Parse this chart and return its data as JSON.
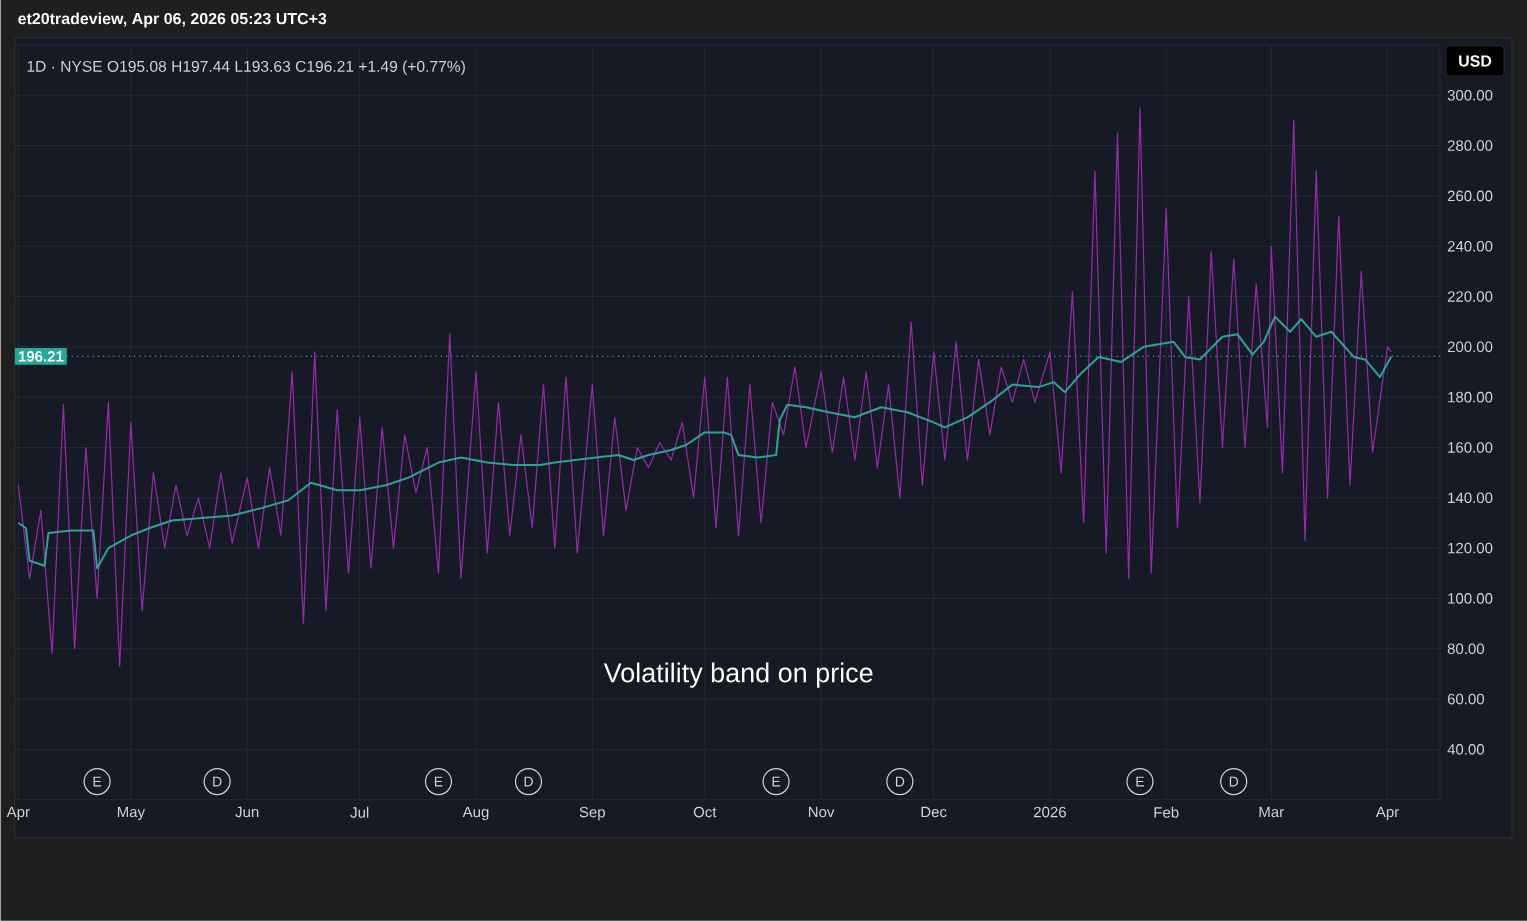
{
  "chart_data": {
    "type": "line",
    "title": "et20tradeview, Apr 06, 2026 05:23 UTC+3",
    "subtitle": "1D · NYSE O195.08 H197.44 L193.63 C196.21 +1.49 (+0.77%)",
    "xlim": [
      "2025-03-31",
      "2026-04-15"
    ],
    "xticks": [
      {
        "value": "2025-04-01",
        "label": "Apr"
      },
      {
        "value": "2025-05-01",
        "label": "May"
      },
      {
        "value": "2025-06-01",
        "label": "Jun"
      },
      {
        "value": "2025-07-01",
        "label": "Jul"
      },
      {
        "value": "2025-08-01",
        "label": "Aug"
      },
      {
        "value": "2025-09-01",
        "label": "Sep"
      },
      {
        "value": "2025-10-01",
        "label": "Oct"
      },
      {
        "value": "2025-11-01",
        "label": "Nov"
      },
      {
        "value": "2025-12-01",
        "label": "Dec"
      },
      {
        "value": "2026-01-01",
        "label": "2026"
      },
      {
        "value": "2026-02-01",
        "label": "Feb"
      },
      {
        "value": "2026-03-01",
        "label": "Mar"
      },
      {
        "value": "2026-04-01",
        "label": "Apr"
      }
    ],
    "ylim": [
      20,
      320
    ],
    "yticks": [
      {
        "value": 40,
        "label": "40.00"
      },
      {
        "value": 60,
        "label": "60.00"
      },
      {
        "value": 80,
        "label": "80.00"
      },
      {
        "value": 100,
        "label": "100.00"
      },
      {
        "value": 120,
        "label": "120.00"
      },
      {
        "value": 140,
        "label": "140.00"
      },
      {
        "value": 160,
        "label": "160.00"
      },
      {
        "value": 180,
        "label": "180.00"
      },
      {
        "value": 200,
        "label": "200.00"
      },
      {
        "value": 220,
        "label": "220.00"
      },
      {
        "value": 240,
        "label": "240.00"
      },
      {
        "value": 260,
        "label": "260.00"
      },
      {
        "value": 280,
        "label": "280.00"
      },
      {
        "value": 300,
        "label": "300.00"
      }
    ],
    "grid": true,
    "series": [
      {
        "color": "#9c27b0",
        "x": [
          "2025-04-01",
          "2025-04-04",
          "2025-04-07",
          "2025-04-10",
          "2025-04-13",
          "2025-04-16",
          "2025-04-19",
          "2025-04-22",
          "2025-04-25",
          "2025-04-28",
          "2025-05-01",
          "2025-05-04",
          "2025-05-07",
          "2025-05-10",
          "2025-05-13",
          "2025-05-16",
          "2025-05-19",
          "2025-05-22",
          "2025-05-25",
          "2025-05-28",
          "2025-06-01",
          "2025-06-04",
          "2025-06-07",
          "2025-06-10",
          "2025-06-13",
          "2025-06-16",
          "2025-06-19",
          "2025-06-22",
          "2025-06-25",
          "2025-06-28",
          "2025-07-01",
          "2025-07-04",
          "2025-07-07",
          "2025-07-10",
          "2025-07-13",
          "2025-07-16",
          "2025-07-19",
          "2025-07-22",
          "2025-07-25",
          "2025-07-28",
          "2025-08-01",
          "2025-08-04",
          "2025-08-07",
          "2025-08-10",
          "2025-08-13",
          "2025-08-16",
          "2025-08-19",
          "2025-08-22",
          "2025-08-25",
          "2025-08-28",
          "2025-09-01",
          "2025-09-04",
          "2025-09-07",
          "2025-09-10",
          "2025-09-13",
          "2025-09-16",
          "2025-09-19",
          "2025-09-22",
          "2025-09-25",
          "2025-09-28",
          "2025-10-01",
          "2025-10-04",
          "2025-10-07",
          "2025-10-10",
          "2025-10-13",
          "2025-10-16",
          "2025-10-19",
          "2025-10-22",
          "2025-10-25",
          "2025-10-28",
          "2025-11-01",
          "2025-11-04",
          "2025-11-07",
          "2025-11-10",
          "2025-11-13",
          "2025-11-16",
          "2025-11-19",
          "2025-11-22",
          "2025-11-25",
          "2025-11-28",
          "2025-12-01",
          "2025-12-04",
          "2025-12-07",
          "2025-12-10",
          "2025-12-13",
          "2025-12-16",
          "2025-12-19",
          "2025-12-22",
          "2025-12-25",
          "2025-12-28",
          "2026-01-01",
          "2026-01-04",
          "2026-01-07",
          "2026-01-10",
          "2026-01-13",
          "2026-01-16",
          "2026-01-19",
          "2026-01-22",
          "2026-01-25",
          "2026-01-28",
          "2026-02-01",
          "2026-02-04",
          "2026-02-07",
          "2026-02-10",
          "2026-02-13",
          "2026-02-16",
          "2026-02-19",
          "2026-02-22",
          "2026-02-25",
          "2026-02-28",
          "2026-03-01",
          "2026-03-04",
          "2026-03-07",
          "2026-03-10",
          "2026-03-13",
          "2026-03-16",
          "2026-03-19",
          "2026-03-22",
          "2026-03-25",
          "2026-03-28",
          "2026-04-01",
          "2026-04-02"
        ],
        "values": [
          145,
          108,
          135,
          78,
          177,
          80,
          160,
          100,
          178,
          73,
          170,
          95,
          150,
          120,
          145,
          125,
          140,
          120,
          150,
          122,
          148,
          120,
          152,
          125,
          190,
          90,
          198,
          95,
          175,
          110,
          172,
          112,
          168,
          120,
          165,
          142,
          160,
          110,
          205,
          108,
          190,
          118,
          178,
          125,
          165,
          128,
          185,
          120,
          188,
          118,
          185,
          125,
          172,
          135,
          160,
          152,
          162,
          155,
          170,
          140,
          188,
          128,
          188,
          125,
          185,
          130,
          178,
          165,
          192,
          160,
          190,
          158,
          188,
          155,
          190,
          152,
          185,
          140,
          210,
          145,
          198,
          155,
          202,
          155,
          195,
          165,
          192,
          178,
          195,
          178,
          198,
          150,
          222,
          130,
          270,
          118,
          285,
          108,
          295,
          110,
          255,
          128,
          220,
          138,
          238,
          160,
          235,
          160,
          225,
          168,
          240,
          150,
          290,
          123,
          270,
          140,
          252,
          145,
          230,
          158,
          200,
          198
        ]
      },
      {
        "color": "#26a69a",
        "x": [
          "2025-04-01",
          "2025-04-03",
          "2025-04-04",
          "2025-04-08",
          "2025-04-09",
          "2025-04-15",
          "2025-04-21",
          "2025-04-22",
          "2025-04-25",
          "2025-05-01",
          "2025-05-06",
          "2025-05-12",
          "2025-05-20",
          "2025-05-28",
          "2025-06-05",
          "2025-06-12",
          "2025-06-18",
          "2025-06-25",
          "2025-07-01",
          "2025-07-08",
          "2025-07-14",
          "2025-07-18",
          "2025-07-22",
          "2025-07-28",
          "2025-08-04",
          "2025-08-11",
          "2025-08-18",
          "2025-08-22",
          "2025-09-02",
          "2025-09-08",
          "2025-09-12",
          "2025-09-16",
          "2025-09-22",
          "2025-09-26",
          "2025-10-01",
          "2025-10-06",
          "2025-10-08",
          "2025-10-10",
          "2025-10-15",
          "2025-10-20",
          "2025-10-21",
          "2025-10-23",
          "2025-10-28",
          "2025-11-03",
          "2025-11-10",
          "2025-11-17",
          "2025-11-24",
          "2025-12-01",
          "2025-12-04",
          "2025-12-10",
          "2025-12-16",
          "2025-12-22",
          "2025-12-29",
          "2026-01-02",
          "2026-01-05",
          "2026-01-09",
          "2026-01-14",
          "2026-01-20",
          "2026-01-26",
          "2026-02-03",
          "2026-02-06",
          "2026-02-10",
          "2026-02-16",
          "2026-02-20",
          "2026-02-24",
          "2026-02-27",
          "2026-03-02",
          "2026-03-06",
          "2026-03-09",
          "2026-03-13",
          "2026-03-17",
          "2026-03-23",
          "2026-03-26",
          "2026-03-30",
          "2026-04-02"
        ],
        "values": [
          130,
          128,
          115,
          113,
          126,
          127,
          127,
          112,
          120,
          125,
          128,
          131,
          132,
          133,
          136,
          139,
          146,
          143,
          143,
          145,
          148,
          151,
          154,
          156,
          154,
          153,
          153,
          154,
          156,
          157,
          155,
          157,
          159,
          161,
          166,
          166,
          165,
          157,
          156,
          157,
          171,
          177,
          176,
          174,
          172,
          176,
          174,
          170,
          168,
          172,
          178,
          185,
          184,
          186,
          182,
          189,
          196,
          194,
          200,
          202,
          196,
          195,
          204,
          205,
          197,
          202,
          212,
          206,
          211,
          204,
          206,
          196,
          195,
          188,
          196.21
        ]
      }
    ],
    "ref_lines": [
      {
        "axis": "y",
        "value": 196.21,
        "label": "196.21",
        "color": "#22ab94",
        "line_style": "dotted"
      }
    ],
    "annotations": [
      "Volatility band on price",
      "USD",
      {
        "text": "E",
        "x": "2025-04-22"
      },
      {
        "text": "D",
        "x": "2025-05-24"
      },
      {
        "text": "E",
        "x": "2025-07-22"
      },
      {
        "text": "D",
        "x": "2025-08-15"
      },
      {
        "text": "E",
        "x": "2025-10-20"
      },
      {
        "text": "D",
        "x": "2025-11-22"
      },
      {
        "text": "E",
        "x": "2026-01-25"
      },
      {
        "text": "D",
        "x": "2026-02-19"
      }
    ]
  }
}
